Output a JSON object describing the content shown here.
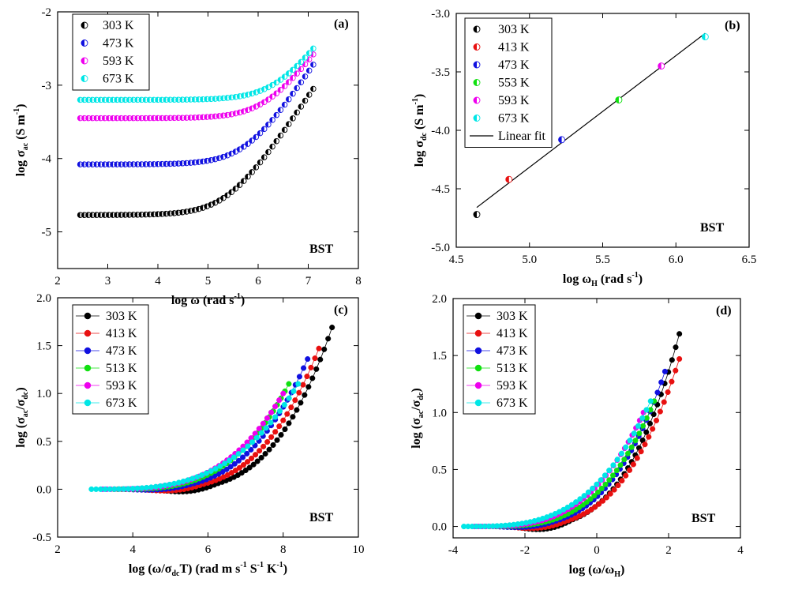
{
  "chart_data": [
    {
      "id": "a",
      "type": "scatter",
      "panel_label": "(a)",
      "annotation": "BST",
      "xlabel": {
        "main": "log ω (rad s",
        "sup": "-1",
        "tail": ")"
      },
      "ylabel": {
        "main": "log σ",
        "sub": "ac",
        "tail1": " (S m",
        "sup": "-1",
        "tail2": ")"
      },
      "xlim": [
        2,
        8
      ],
      "ylim": [
        -5.5,
        -2
      ],
      "xticks": [
        2,
        3,
        4,
        5,
        6,
        7,
        8
      ],
      "yticks": [
        -5,
        -4,
        -3,
        -2
      ],
      "legend": [
        "303 K",
        "473 K",
        "593 K",
        "673 K"
      ],
      "series": [
        {
          "name": "303 K",
          "color": "#000000",
          "marker": "half",
          "x_start": 2.45,
          "x_end": 7.1,
          "y_plateau": -4.77,
          "y_end": -3.05,
          "y_corner": 5.4
        },
        {
          "name": "473 K",
          "color": "#1010e0",
          "marker": "half",
          "x_start": 2.45,
          "x_end": 7.1,
          "y_plateau": -4.08,
          "y_end": -2.72,
          "y_corner": 5.8
        },
        {
          "name": "593 K",
          "color": "#ee00ee",
          "marker": "half",
          "x_start": 2.45,
          "x_end": 7.1,
          "y_plateau": -3.45,
          "y_end": -2.58,
          "y_corner": 6.2
        },
        {
          "name": "673 K",
          "color": "#00e6e6",
          "marker": "half",
          "x_start": 2.45,
          "x_end": 7.1,
          "y_plateau": -3.2,
          "y_end": -2.5,
          "y_corner": 6.4
        }
      ]
    },
    {
      "id": "b",
      "type": "scatter",
      "panel_label": "(b)",
      "annotation": "BST",
      "xlabel": {
        "main": "log ω",
        "sub": "H",
        "tail1": " (rad s",
        "sup": "-1",
        "tail2": ")"
      },
      "ylabel": {
        "main": "log σ",
        "sub": "dc",
        "tail1": " (S m",
        "sup": "-1",
        "tail2": ")"
      },
      "xlim": [
        4.5,
        6.5
      ],
      "ylim": [
        -5.0,
        -3.0
      ],
      "xticks": [
        4.5,
        5.0,
        5.5,
        6.0,
        6.5
      ],
      "yticks": [
        -5.0,
        -4.5,
        -4.0,
        -3.5,
        -3.0
      ],
      "legend": [
        "303 K",
        "413 K",
        "473 K",
        "553 K",
        "593 K",
        "673 K",
        "Linear fit"
      ],
      "points": [
        {
          "name": "303 K",
          "color": "#000000",
          "x": 4.64,
          "y": -4.72
        },
        {
          "name": "413 K",
          "color": "#e81010",
          "x": 4.86,
          "y": -4.42
        },
        {
          "name": "473 K",
          "color": "#1010e0",
          "x": 5.22,
          "y": -4.08
        },
        {
          "name": "553 K",
          "color": "#10e010",
          "x": 5.61,
          "y": -3.74
        },
        {
          "name": "593 K",
          "color": "#ee00ee",
          "x": 5.9,
          "y": -3.45
        },
        {
          "name": "673 K",
          "color": "#00e6e6",
          "x": 6.2,
          "y": -3.2
        }
      ],
      "fit": {
        "x": [
          4.64,
          6.2
        ],
        "y": [
          -4.66,
          -3.17
        ]
      }
    },
    {
      "id": "c",
      "type": "line",
      "panel_label": "(c)",
      "annotation": "BST",
      "xlabel": {
        "main": "log (ω/σ",
        "sub": "dc",
        "tail1": "T) (rad m s",
        "sup": "-1",
        "tail2": " S",
        "sup2": "-1",
        "tail3": " K",
        "sup3": "-1",
        "tail4": ")"
      },
      "ylabel": {
        "main": "log (σ",
        "sub": "ac",
        "mid": "/σ",
        "sub2": "dc",
        "tail": ")"
      },
      "xlim": [
        2,
        10
      ],
      "ylim": [
        -0.5,
        2.0
      ],
      "xticks": [
        2,
        4,
        6,
        8,
        10
      ],
      "yticks": [
        -0.5,
        0.0,
        0.5,
        1.0,
        1.5,
        2.0
      ],
      "legend": [
        "303 K",
        "413 K",
        "473 K",
        "513 K",
        "593 K",
        "673 K"
      ],
      "series": [
        {
          "name": "303 K",
          "color": "#000000",
          "x_start": 4.6,
          "x_end": 9.3,
          "y_end": 1.69,
          "dip": -0.03
        },
        {
          "name": "413 K",
          "color": "#e81010",
          "x_start": 4.2,
          "x_end": 8.95,
          "y_end": 1.47,
          "dip": -0.02
        },
        {
          "name": "473 K",
          "color": "#1010e0",
          "x_start": 3.8,
          "x_end": 8.65,
          "y_end": 1.36,
          "dip": -0.01
        },
        {
          "name": "513 K",
          "color": "#10e010",
          "x_start": 3.5,
          "x_end": 8.15,
          "y_end": 1.1,
          "dip": 0.0
        },
        {
          "name": "593 K",
          "color": "#ee00ee",
          "x_start": 3.2,
          "x_end": 8.0,
          "y_end": 1.0,
          "dip": 0.0
        },
        {
          "name": "673 K",
          "color": "#00e6e6",
          "x_start": 2.9,
          "x_end": 8.4,
          "y_end": 1.1,
          "dip": 0.0
        }
      ]
    },
    {
      "id": "d",
      "type": "line",
      "panel_label": "(d)",
      "annotation": "BST",
      "xlabel": {
        "main": "log (ω/ω",
        "sub": "H",
        "tail": ")"
      },
      "ylabel": {
        "main": "log (σ",
        "sub": "ac",
        "mid": "/σ",
        "sub2": "dc",
        "tail": ")"
      },
      "xlim": [
        -4,
        4
      ],
      "ylim": [
        -0.1,
        2.0
      ],
      "xticks": [
        -4,
        -2,
        0,
        2,
        4
      ],
      "yticks": [
        0.0,
        0.5,
        1.0,
        1.5,
        2.0
      ],
      "legend": [
        "303 K",
        "413 K",
        "473 K",
        "513 K",
        "593 K",
        "673 K"
      ],
      "series": [
        {
          "name": "303 K",
          "color": "#000000",
          "x_start": -2.3,
          "x_end": 2.3,
          "y_end": 1.69,
          "dip": -0.03
        },
        {
          "name": "413 K",
          "color": "#e81010",
          "x_start": -2.5,
          "x_end": 2.3,
          "y_end": 1.47,
          "dip": -0.02
        },
        {
          "name": "473 K",
          "color": "#1010e0",
          "x_start": -2.8,
          "x_end": 1.9,
          "y_end": 1.36,
          "dip": -0.01
        },
        {
          "name": "513 K",
          "color": "#10e010",
          "x_start": -3.1,
          "x_end": 1.6,
          "y_end": 1.1,
          "dip": 0.0
        },
        {
          "name": "593 K",
          "color": "#ee00ee",
          "x_start": -3.4,
          "x_end": 1.3,
          "y_end": 1.0,
          "dip": 0.0
        },
        {
          "name": "673 K",
          "color": "#00e6e6",
          "x_start": -3.7,
          "x_end": 1.5,
          "y_end": 1.1,
          "dip": 0.0
        }
      ]
    }
  ]
}
